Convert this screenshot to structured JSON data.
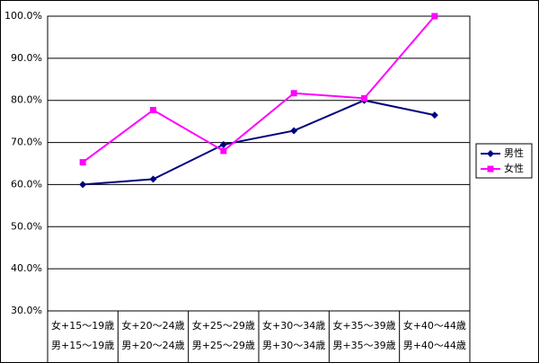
{
  "chart_data": {
    "type": "line",
    "categories": [
      [
        "女+15～19歳",
        "男+15～19歳"
      ],
      [
        "女+20～24歳",
        "男+20～24歳"
      ],
      [
        "女+25～29歳",
        "男+25～29歳"
      ],
      [
        "女+30～34歳",
        "男+30～34歳"
      ],
      [
        "女+35～39歳",
        "男+35～39歳"
      ],
      [
        "女+40～44歳",
        "男+40～44歳"
      ]
    ],
    "series": [
      {
        "name": "男性",
        "color": "#000080",
        "marker": "diamond",
        "values": [
          60.0,
          61.3,
          69.5,
          72.8,
          80.0,
          76.5
        ]
      },
      {
        "name": "女性",
        "color": "#ff00ff",
        "marker": "square",
        "values": [
          65.3,
          77.7,
          68.0,
          81.7,
          80.5,
          100.0
        ]
      }
    ],
    "ylim": [
      30,
      100
    ],
    "yticks": [
      {
        "value": 30,
        "label": "30.0%"
      },
      {
        "value": 40,
        "label": "40.0%"
      },
      {
        "value": 50,
        "label": "50.0%"
      },
      {
        "value": 60,
        "label": "60.0%"
      },
      {
        "value": 70,
        "label": "70.0%"
      },
      {
        "value": 80,
        "label": "80.0%"
      },
      {
        "value": 90,
        "label": "90.0%"
      },
      {
        "value": 100,
        "label": "100.0%"
      }
    ],
    "grid": true,
    "legend": "right"
  }
}
